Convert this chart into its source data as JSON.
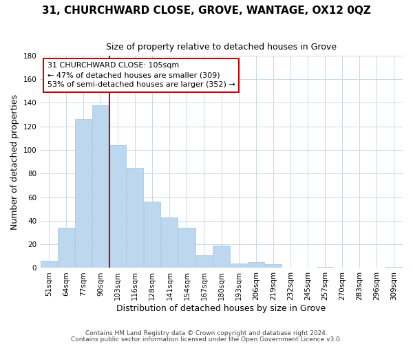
{
  "title": "31, CHURCHWARD CLOSE, GROVE, WANTAGE, OX12 0QZ",
  "subtitle": "Size of property relative to detached houses in Grove",
  "xlabel": "Distribution of detached houses by size in Grove",
  "ylabel": "Number of detached properties",
  "categories": [
    "51sqm",
    "64sqm",
    "77sqm",
    "90sqm",
    "103sqm",
    "116sqm",
    "128sqm",
    "141sqm",
    "154sqm",
    "167sqm",
    "180sqm",
    "193sqm",
    "206sqm",
    "219sqm",
    "232sqm",
    "245sqm",
    "257sqm",
    "270sqm",
    "283sqm",
    "296sqm",
    "309sqm"
  ],
  "values": [
    6,
    34,
    126,
    138,
    104,
    85,
    56,
    43,
    34,
    11,
    19,
    4,
    5,
    3,
    0,
    0,
    1,
    0,
    0,
    0,
    1
  ],
  "bar_color": "#bdd7ee",
  "bar_edge_color": "#9ec6e0",
  "vline_color": "#cc0000",
  "vline_x_index": 3.5,
  "annotation_title": "31 CHURCHWARD CLOSE: 105sqm",
  "annotation_line1": "← 47% of detached houses are smaller (309)",
  "annotation_line2": "53% of semi-detached houses are larger (352) →",
  "annotation_box_color": "#cc0000",
  "ylim": [
    0,
    180
  ],
  "yticks": [
    0,
    20,
    40,
    60,
    80,
    100,
    120,
    140,
    160,
    180
  ],
  "footer1": "Contains HM Land Registry data © Crown copyright and database right 2024.",
  "footer2": "Contains public sector information licensed under the Open Government Licence v3.0.",
  "background_color": "#ffffff",
  "grid_color": "#c8d8e8",
  "title_fontsize": 11,
  "subtitle_fontsize": 9,
  "axis_label_fontsize": 9,
  "tick_fontsize": 7.5,
  "footer_fontsize": 6.5
}
